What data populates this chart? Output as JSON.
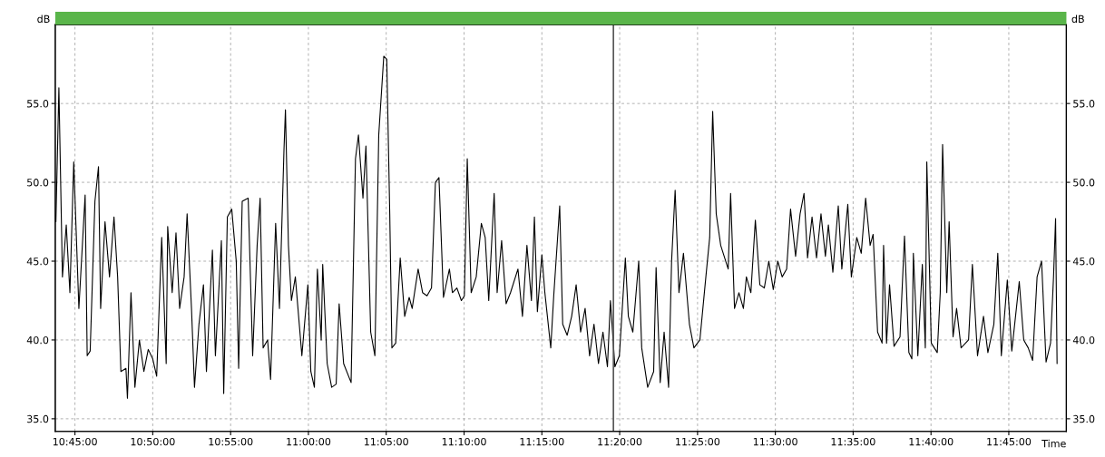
{
  "chart_data": {
    "type": "line",
    "xlabel": "Time",
    "ylabel": "dB",
    "y2label": "dB",
    "xlim": [
      10.7289,
      11.8116
    ],
    "ylim": [
      34.2,
      60.0
    ],
    "y2lim": [
      34.2,
      60.0
    ],
    "xticks": [
      {
        "value": 10.75,
        "label": "10:45:00"
      },
      {
        "value": 10.8333,
        "label": "10:50:00"
      },
      {
        "value": 10.9167,
        "label": "10:55:00"
      },
      {
        "value": 11.0,
        "label": "11:00:00"
      },
      {
        "value": 11.0833,
        "label": "11:05:00"
      },
      {
        "value": 11.1667,
        "label": "11:10:00"
      },
      {
        "value": 11.25,
        "label": "11:15:00"
      },
      {
        "value": 11.3333,
        "label": "11:20:00"
      },
      {
        "value": 11.4167,
        "label": "11:25:00"
      },
      {
        "value": 11.5,
        "label": "11:30:00"
      },
      {
        "value": 11.5833,
        "label": "11:35:00"
      },
      {
        "value": 11.6667,
        "label": "11:40:00"
      },
      {
        "value": 11.75,
        "label": "11:45:00"
      }
    ],
    "yticks": [
      {
        "value": 35,
        "label": "35.0"
      },
      {
        "value": 40,
        "label": "40.0"
      },
      {
        "value": 45,
        "label": "45.0"
      },
      {
        "value": 50,
        "label": "50.0"
      },
      {
        "value": 55,
        "label": "55.0"
      }
    ],
    "y2ticks": [
      {
        "value": 35,
        "label": "35.0"
      },
      {
        "value": 40,
        "label": "40.0"
      },
      {
        "value": 45,
        "label": "45.0"
      },
      {
        "value": 50,
        "label": "50.0"
      },
      {
        "value": 55,
        "label": "55.0"
      }
    ],
    "grid": true,
    "line_style": "solid",
    "marker": "none",
    "ref_lines": [
      {
        "axis": "x",
        "value": 11.3266,
        "color": "#555555"
      }
    ],
    "series": [
      {
        "color": "#000000",
        "x": [
          10.7296,
          10.7328,
          10.7366,
          10.7407,
          10.7446,
          10.7487,
          10.7542,
          10.7609,
          10.7631,
          10.7663,
          10.7714,
          10.7752,
          10.7775,
          10.7822,
          10.787,
          10.7918,
          10.7957,
          10.7992,
          10.8046,
          10.8062,
          10.81,
          10.8142,
          10.819,
          10.8238,
          10.8285,
          10.8333,
          10.8375,
          10.8429,
          10.8477,
          10.8493,
          10.8541,
          10.8582,
          10.8621,
          10.8669,
          10.8701,
          10.8748,
          10.878,
          10.8828,
          10.8876,
          10.8908,
          10.8972,
          10.9004,
          10.9068,
          10.9093,
          10.9132,
          10.9179,
          10.9227,
          10.9253,
          10.9291,
          10.9355,
          10.9403,
          10.9451,
          10.9483,
          10.9515,
          10.9563,
          10.9595,
          10.9626,
          10.9649,
          10.969,
          10.9738,
          10.9754,
          10.9786,
          10.9818,
          10.986,
          10.993,
          10.9994,
          11.0026,
          11.0064,
          11.0096,
          11.0137,
          11.0153,
          11.0201,
          11.0249,
          11.0297,
          11.0329,
          11.0377,
          11.0457,
          11.0504,
          11.0536,
          11.0584,
          11.0616,
          11.0667,
          11.0712,
          11.0753,
          11.0807,
          11.0839,
          11.0871,
          11.0894,
          11.0935,
          11.0983,
          11.1031,
          11.1079,
          11.1111,
          11.1175,
          11.1223,
          11.127,
          11.1318,
          11.136,
          11.1398,
          11.1446,
          11.151,
          11.1542,
          11.159,
          11.1638,
          11.167,
          11.1701,
          11.1743,
          11.1797,
          11.1852,
          11.1893,
          11.1931,
          11.1989,
          11.2021,
          11.2069,
          11.2117,
          11.2164,
          11.2244,
          11.2292,
          11.234,
          11.2388,
          11.242,
          11.2452,
          11.25,
          11.2532,
          11.2595,
          11.2627,
          11.2691,
          11.2723,
          11.2771,
          11.2819,
          11.2867,
          11.2915,
          11.2963,
          11.3011,
          11.3058,
          11.3106,
          11.3154,
          11.3202,
          11.3234,
          11.3282,
          11.333,
          11.3394,
          11.3426,
          11.3474,
          11.3537,
          11.3569,
          11.3633,
          11.3697,
          11.3723,
          11.3767,
          11.3809,
          11.3857,
          11.3889,
          11.3927,
          11.3968,
          11.4016,
          11.408,
          11.4128,
          11.4192,
          11.4256,
          11.4297,
          11.4329,
          11.4367,
          11.4415,
          11.4495,
          11.4521,
          11.4563,
          11.461,
          11.4658,
          11.469,
          11.4738,
          11.4786,
          11.4834,
          11.4882,
          11.493,
          11.4978,
          11.5026,
          11.5073,
          11.5121,
          11.5163,
          11.5217,
          11.5265,
          11.5307,
          11.5345,
          11.5393,
          11.5441,
          11.5489,
          11.5536,
          11.5568,
          11.5616,
          11.5674,
          11.5712,
          11.5776,
          11.5814,
          11.5872,
          11.592,
          11.5967,
          11.6015,
          11.6047,
          11.6095,
          11.6143,
          11.6159,
          11.6191,
          11.6223,
          11.6271,
          11.6335,
          11.6383,
          11.643,
          11.6462,
          11.6478,
          11.6526,
          11.6574,
          11.6606,
          11.6622,
          11.667,
          11.6734,
          11.6766,
          11.6791,
          11.6836,
          11.6861,
          11.6903,
          11.6941,
          11.6989,
          11.7069,
          11.711,
          11.7165,
          11.7229,
          11.7276,
          11.734,
          11.7382,
          11.742,
          11.7484,
          11.7532,
          11.7612,
          11.766,
          11.7708,
          11.7755,
          11.7803,
          11.7851,
          11.7899,
          11.7947,
          11.7979,
          11.8001,
          11.8017
        ],
        "values": [
          47.5,
          56.0,
          44,
          47.3,
          43,
          51.3,
          42,
          49.2,
          39,
          39.3,
          48.8,
          51,
          42,
          47.5,
          44,
          47.8,
          44,
          38,
          38.2,
          36.3,
          43,
          37,
          40,
          38,
          39.4,
          38.8,
          37.7,
          46.5,
          38.5,
          47.2,
          43,
          46.8,
          42,
          44,
          48,
          42,
          37,
          41,
          43.5,
          38,
          45.7,
          39,
          46.3,
          36.6,
          47.8,
          48.3,
          45,
          38.2,
          48.8,
          49,
          39,
          46,
          49,
          39.5,
          40,
          37.5,
          43.2,
          47.4,
          42,
          52,
          54.6,
          46,
          42.5,
          44,
          39,
          43.5,
          38,
          37,
          44.5,
          40,
          44.8,
          38.5,
          37,
          37.2,
          42.3,
          38.5,
          37.3,
          51.5,
          53,
          49,
          52.3,
          40.5,
          39,
          53,
          58,
          57.8,
          48,
          39.5,
          39.8,
          45.2,
          41.5,
          42.7,
          42,
          44.5,
          43,
          42.8,
          43.3,
          50,
          50.3,
          42.7,
          44.5,
          43,
          43.3,
          42.5,
          42.8,
          51.5,
          43,
          44,
          47.4,
          46.5,
          42.5,
          49.3,
          43,
          46.3,
          42.3,
          43,
          44.5,
          41.5,
          46,
          42.5,
          47.8,
          41.8,
          45.4,
          43,
          39.5,
          42.8,
          48.5,
          41,
          40.3,
          41.5,
          43.5,
          40.5,
          42,
          39,
          41,
          38.5,
          40.5,
          38.3,
          42.5,
          38.3,
          39,
          45.2,
          41.5,
          40.5,
          45,
          39.5,
          37,
          38,
          44.6,
          37.3,
          40.5,
          37,
          45,
          49.5,
          43,
          45.5,
          41,
          39.5,
          40,
          44,
          46.5,
          54.5,
          48,
          46,
          44.5,
          49.3,
          42,
          43,
          42,
          44,
          43,
          47.6,
          43.5,
          43.3,
          45,
          43.2,
          45,
          44,
          44.5,
          48.3,
          45.3,
          48,
          49.3,
          45.2,
          47.8,
          45.2,
          48,
          45.3,
          47.3,
          44.3,
          48.5,
          44.5,
          48.6,
          44,
          46.5,
          45.5,
          49,
          46,
          46.7,
          40.5,
          39.8,
          46,
          39.8,
          43.5,
          39.6,
          40.2,
          46.6,
          39.2,
          38.8,
          45.5,
          39,
          44.8,
          39.5,
          51.3,
          39.8,
          39.2,
          43,
          52.4,
          43,
          47.5,
          40.2,
          42,
          39.5,
          40,
          44.8,
          39,
          41.5,
          39.2,
          41,
          45.5,
          39,
          43.8,
          39.3,
          43.7,
          40,
          39.5,
          38.7,
          44,
          45,
          38.6,
          39.8,
          44,
          47.7,
          38.5
        ]
      }
    ]
  }
}
